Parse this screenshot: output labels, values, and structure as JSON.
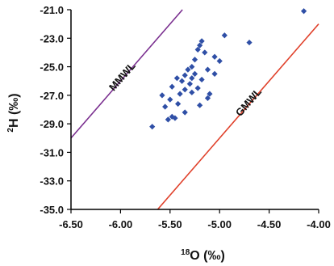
{
  "chart_data": {
    "type": "scatter",
    "title": "",
    "xlabel": {
      "sup": "18",
      "main": "O (",
      "frac": "‰",
      "close": ")"
    },
    "ylabel": {
      "sup": "2",
      "main": "H (",
      "frac": "‰",
      "close": ")"
    },
    "xlim": [
      -6.5,
      -4.0
    ],
    "ylim": [
      -35.0,
      -21.0
    ],
    "x_ticks": [
      "-6.50",
      "-6.00",
      "-5.50",
      "-5.00",
      "-4.50",
      "-4.00"
    ],
    "x_tick_values": [
      -6.5,
      -6.0,
      -5.5,
      -5.0,
      -4.5,
      -4.0
    ],
    "y_ticks": [
      "-21.0",
      "-23.0",
      "-25.0",
      "-27.0",
      "-29.0",
      "-31.0",
      "-33.0",
      "-35.0"
    ],
    "y_tick_values": [
      -21.0,
      -23.0,
      -25.0,
      -27.0,
      -29.0,
      -31.0,
      -33.0,
      -35.0
    ],
    "grid": false,
    "colors": {
      "points": "#2f4fa6",
      "mmwl": "#7a2f8f",
      "gmwl": "#e0402a",
      "axes": "#000000"
    },
    "series": [
      {
        "points": [
          [
            -4.15,
            -21.1
          ],
          [
            -4.7,
            -23.3
          ],
          [
            -4.95,
            -22.8
          ],
          [
            -5.18,
            -23.2
          ],
          [
            -5.2,
            -23.5
          ],
          [
            -5.22,
            -23.8
          ],
          [
            -5.15,
            -24.0
          ],
          [
            -5.05,
            -24.3
          ],
          [
            -5.25,
            -24.5
          ],
          [
            -5.0,
            -24.6
          ],
          [
            -5.28,
            -25.0
          ],
          [
            -5.12,
            -25.2
          ],
          [
            -5.32,
            -25.2
          ],
          [
            -5.25,
            -25.5
          ],
          [
            -5.35,
            -25.6
          ],
          [
            -5.28,
            -25.8
          ],
          [
            -5.43,
            -25.8
          ],
          [
            -5.18,
            -25.9
          ],
          [
            -5.05,
            -25.5
          ],
          [
            -5.38,
            -26.0
          ],
          [
            -5.3,
            -26.2
          ],
          [
            -5.48,
            -26.4
          ],
          [
            -5.22,
            -26.5
          ],
          [
            -5.35,
            -26.6
          ],
          [
            -5.28,
            -26.8
          ],
          [
            -5.1,
            -26.9
          ],
          [
            -5.4,
            -26.9
          ],
          [
            -5.58,
            -27.0
          ],
          [
            -5.12,
            -27.2
          ],
          [
            -5.5,
            -27.3
          ],
          [
            -5.42,
            -27.6
          ],
          [
            -5.2,
            -27.7
          ],
          [
            -5.55,
            -27.8
          ],
          [
            -5.35,
            -28.2
          ],
          [
            -5.48,
            -28.5
          ],
          [
            -5.45,
            -28.6
          ],
          [
            -5.52,
            -28.7
          ],
          [
            -5.68,
            -29.2
          ]
        ]
      }
    ],
    "lines": [
      {
        "label": "MMWL",
        "slope": 8,
        "intercept": 22,
        "color": "mmwl"
      },
      {
        "label": "GMWL",
        "slope": 8,
        "intercept": 10,
        "color": "gmwl"
      }
    ]
  }
}
